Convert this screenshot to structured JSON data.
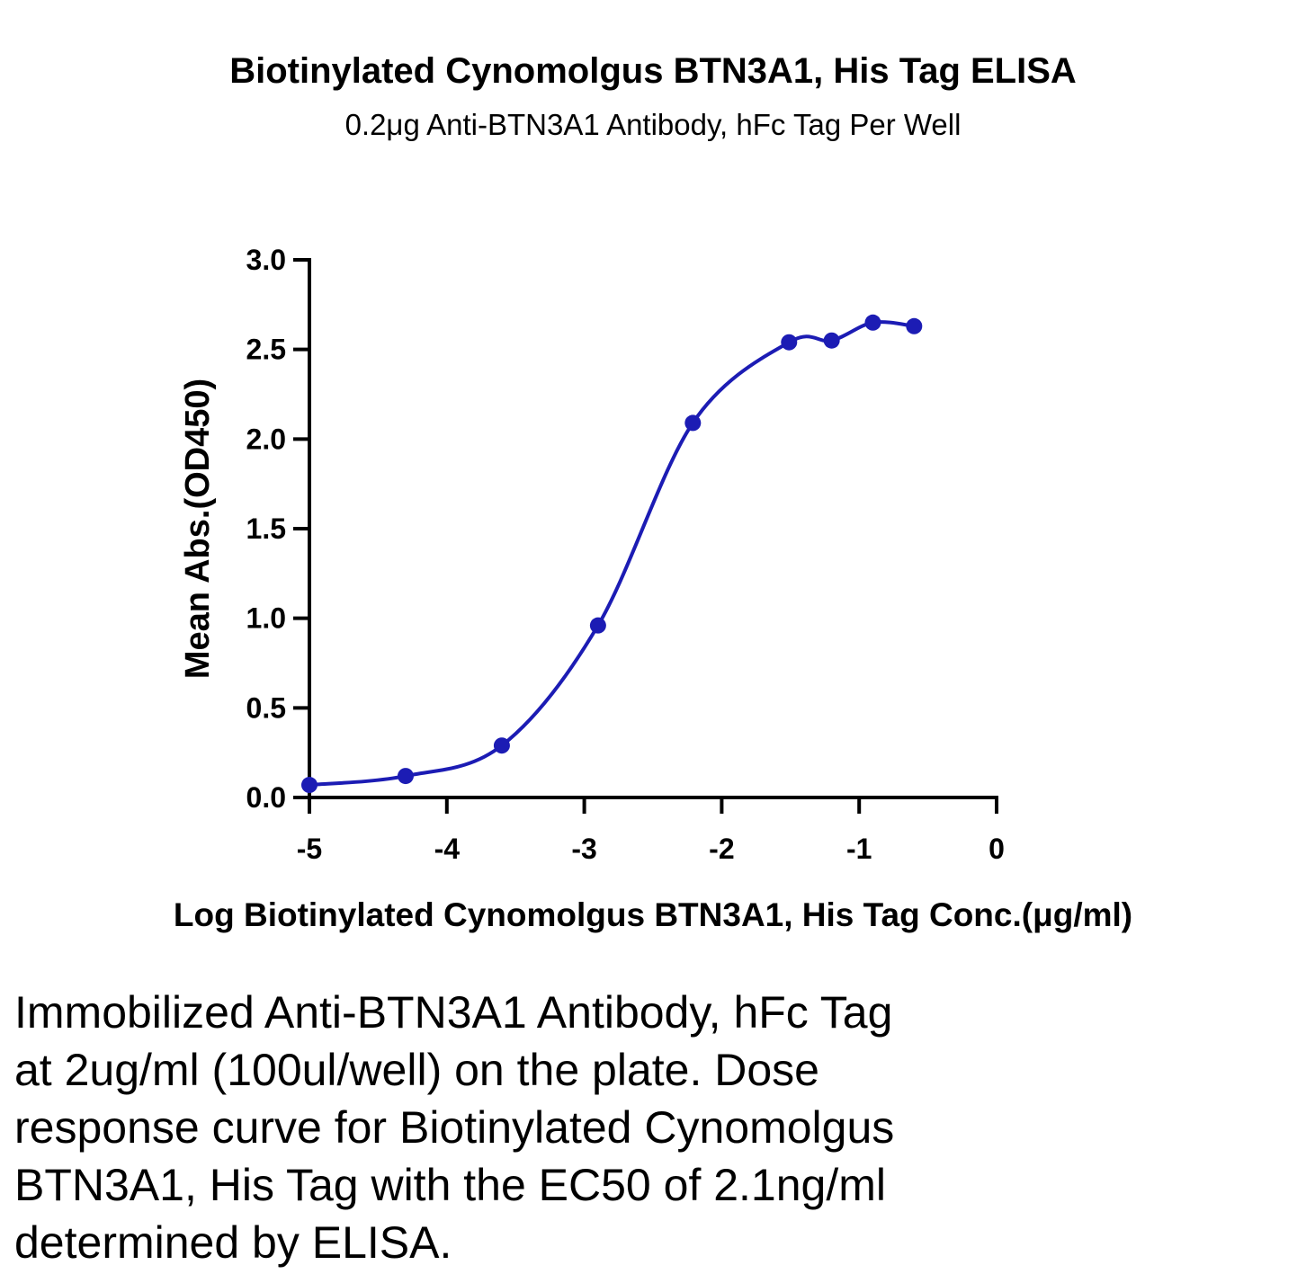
{
  "chart_data": {
    "type": "scatter",
    "title": "Biotinylated  Cynomolgus BTN3A1, His Tag ELISA",
    "subtitle": "0.2μg Anti-BTN3A1 Antibody, hFc Tag Per Well",
    "x_label": "Log Biotinylated  Cynomolgus BTN3A1, His Tag Conc.(μg/ml)",
    "y_label": "Mean Abs.(OD450)",
    "x": [
      -5,
      -4.3,
      -3.6,
      -2.9,
      -2.21,
      -1.51,
      -1.2,
      -0.9,
      -0.6
    ],
    "series": [
      {
        "color": "#1c1cb4",
        "values": [
          0.07,
          0.12,
          0.29,
          0.96,
          2.09,
          2.54,
          2.55,
          2.65,
          2.63
        ]
      }
    ],
    "fit_line": true,
    "xlim": [
      -5,
      0
    ],
    "ylim": [
      0,
      3
    ],
    "xticks": [
      -5,
      -4,
      -3,
      -2,
      -1,
      0
    ],
    "yticks": [
      {
        "value": 0,
        "label": "0.0"
      },
      0.5,
      {
        "value": 1,
        "label": "1.0"
      },
      1.5,
      {
        "value": 2,
        "label": "2.0"
      },
      2.5,
      {
        "value": 3,
        "label": "3.0"
      }
    ]
  },
  "caption": {
    "lines": [
      "Immobilized Anti-BTN3A1 Antibody, hFc Tag",
      "at 2ug/ml (100ul/well) on the plate. Dose",
      "response curve for Biotinylated Cynomolgus",
      "BTN3A1, His Tag with the EC50 of 2.1ng/ml",
      "determined by ELISA."
    ]
  }
}
